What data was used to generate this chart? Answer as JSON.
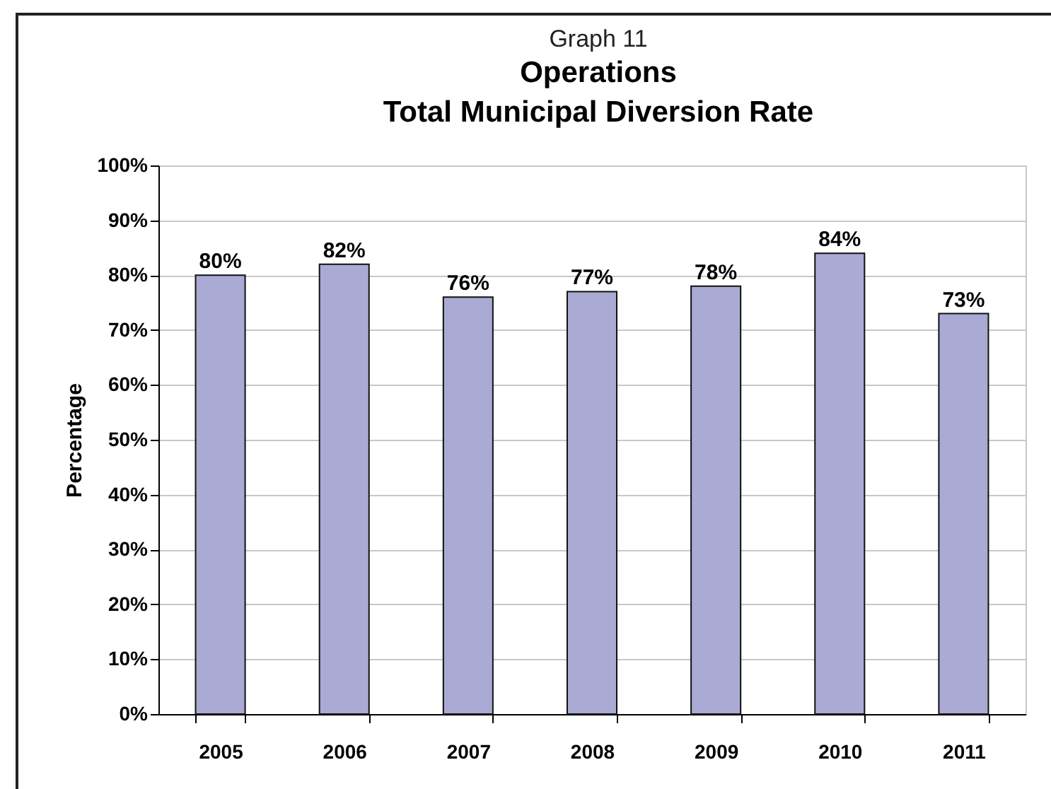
{
  "chart_data": {
    "type": "bar",
    "title": "Operations",
    "subtitle": "Total Municipal Diversion Rate",
    "annotations": [
      "Graph 11"
    ],
    "ylabel": "Percentage",
    "categories": [
      "2005",
      "2006",
      "2007",
      "2008",
      "2009",
      "2010",
      "2011"
    ],
    "values": [
      80,
      82,
      76,
      77,
      78,
      84,
      73
    ],
    "color": "#aaaad5",
    "value_labels": [
      "80%",
      "82%",
      "76%",
      "77%",
      "78%",
      "84%",
      "73%"
    ],
    "ylim": [
      0,
      100
    ],
    "yticks": [
      {
        "value": 0,
        "label": "0%"
      },
      {
        "value": 10,
        "label": "10%"
      },
      {
        "value": 20,
        "label": "20%"
      },
      {
        "value": 30,
        "label": "30%"
      },
      {
        "value": 40,
        "label": "40%"
      },
      {
        "value": 50,
        "label": "50%"
      },
      {
        "value": 60,
        "label": "60%"
      },
      {
        "value": 70,
        "label": "70%"
      },
      {
        "value": 80,
        "label": "80%"
      },
      {
        "value": 90,
        "label": "90%"
      },
      {
        "value": 100,
        "label": "100%"
      }
    ],
    "grid": "y"
  }
}
